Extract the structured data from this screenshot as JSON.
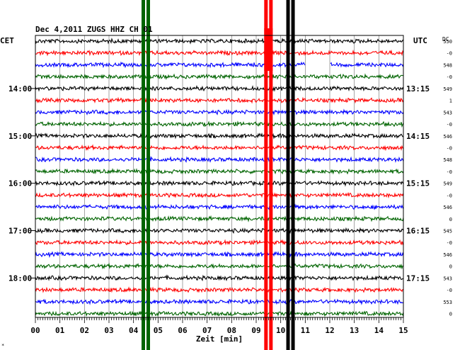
{
  "chart_data": {
    "type": "line",
    "title": "Dec 4,2011   ZUGS HHZ CH 01",
    "left_timezone": "CET",
    "right_timezone": "UTC",
    "dc_label": "DC",
    "xlabel": "Zeit [min]",
    "xlim": [
      0,
      15
    ],
    "x_ticks": [
      "00",
      "01",
      "02",
      "03",
      "04",
      "05",
      "06",
      "07",
      "08",
      "09",
      "10",
      "11",
      "12",
      "13",
      "14",
      "15"
    ],
    "left_hour_labels": [
      "14:00",
      "15:00",
      "16:00",
      "17:00",
      "18:00"
    ],
    "right_hour_labels": [
      "13:15",
      "14:15",
      "15:15",
      "16:15",
      "17:15"
    ],
    "trace_colors": [
      "#000000",
      "#ff0000",
      "#0000ff",
      "#006400"
    ],
    "traces_count": 24,
    "dc_offsets": [
      "550",
      "-0",
      "548",
      "-0",
      "549",
      "1",
      "543",
      "-0",
      "546",
      "-0",
      "548",
      "-0",
      "549",
      "-0",
      "546",
      "0",
      "545",
      "-0",
      "546",
      "0",
      "543",
      "-0",
      "553",
      "0"
    ],
    "events": [
      {
        "minute": 4.5,
        "color": "#006400"
      },
      {
        "minute": 9.5,
        "color": "#ff0000"
      },
      {
        "minute": 10.4,
        "color": "#000000"
      }
    ],
    "gaps": [
      {
        "trace": 2,
        "start": 11.0,
        "end": 12.0
      }
    ],
    "grid": true
  }
}
